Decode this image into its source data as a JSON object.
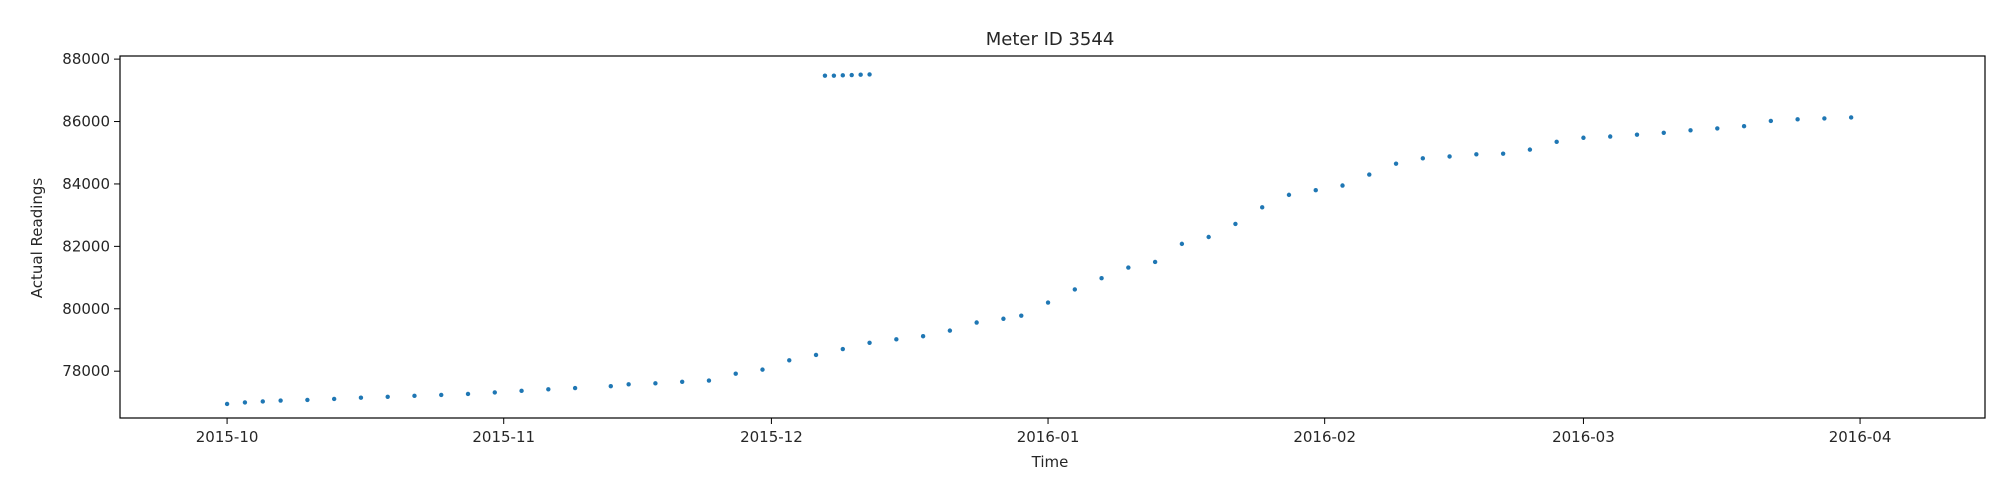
{
  "chart_data": {
    "type": "scatter",
    "title": "Meter ID 3544",
    "xlabel": "Time",
    "ylabel": "Actual Readings",
    "xlim": [
      "2015-09-19",
      "2016-04-15"
    ],
    "ylim": [
      76500,
      88100
    ],
    "x_ticks": [
      "2015-10",
      "2015-11",
      "2015-12",
      "2016-01",
      "2016-02",
      "2016-03",
      "2016-04"
    ],
    "y_ticks": [
      78000,
      80000,
      82000,
      84000,
      86000,
      88000
    ],
    "grid": false,
    "legend": "none",
    "marker_color": "#1f77b4",
    "series": [
      {
        "x": [
          "2015-10-01",
          "2015-10-03",
          "2015-10-05",
          "2015-10-07",
          "2015-10-10",
          "2015-10-13",
          "2015-10-16",
          "2015-10-19",
          "2015-10-22",
          "2015-10-25",
          "2015-10-28",
          "2015-10-31",
          "2015-11-03",
          "2015-11-06",
          "2015-11-09",
          "2015-11-13",
          "2015-11-15",
          "2015-11-18",
          "2015-11-21",
          "2015-11-24",
          "2015-11-27",
          "2015-11-30",
          "2015-12-03",
          "2015-12-06",
          "2015-12-09",
          "2015-12-12",
          "2015-12-15",
          "2015-12-18",
          "2015-12-21",
          "2015-12-24",
          "2015-12-27",
          "2015-12-29",
          "2016-01-01",
          "2016-01-04",
          "2016-01-07",
          "2016-01-10",
          "2016-01-13",
          "2016-01-16",
          "2016-01-19",
          "2016-01-22",
          "2016-01-25",
          "2016-01-28",
          "2016-01-31",
          "2016-02-03",
          "2016-02-06",
          "2016-02-09",
          "2016-02-12",
          "2016-02-15",
          "2016-02-18",
          "2016-02-21",
          "2016-02-24",
          "2016-02-27",
          "2016-03-01",
          "2016-03-04",
          "2016-03-07",
          "2016-03-10",
          "2016-03-13",
          "2016-03-16",
          "2016-03-19",
          "2016-03-22",
          "2016-03-25",
          "2016-03-28",
          "2016-03-31",
          "2015-12-07",
          "2015-12-08",
          "2015-12-09",
          "2015-12-10",
          "2015-12-11",
          "2015-12-12"
        ],
        "y": [
          76950,
          77000,
          77030,
          77060,
          77080,
          77110,
          77150,
          77180,
          77210,
          77240,
          77270,
          77320,
          77370,
          77420,
          77460,
          77520,
          77580,
          77610,
          77660,
          77700,
          77920,
          78050,
          78350,
          78520,
          78710,
          78910,
          79020,
          79120,
          79300,
          79560,
          79680,
          79780,
          80200,
          80620,
          80980,
          81320,
          81500,
          82080,
          82300,
          82720,
          83250,
          83650,
          83800,
          83950,
          84300,
          84650,
          84820,
          84880,
          84950,
          84970,
          85100,
          85350,
          85480,
          85520,
          85580,
          85640,
          85720,
          85780,
          85850,
          86020,
          86070,
          86100,
          86130,
          87470,
          87470,
          87480,
          87490,
          87500,
          87510
        ]
      }
    ]
  }
}
